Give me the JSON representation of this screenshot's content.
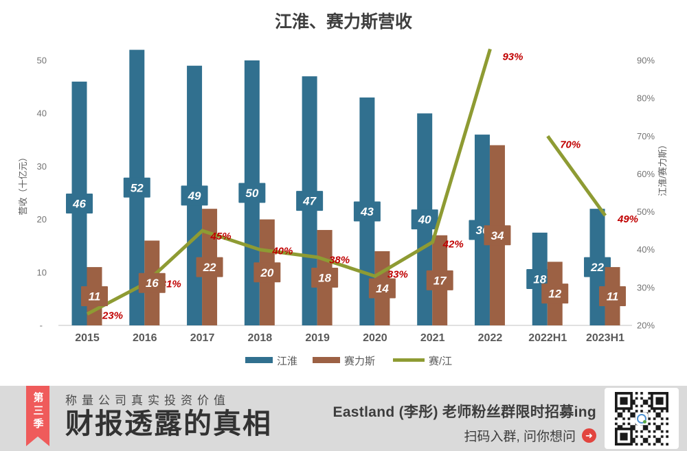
{
  "chart": {
    "title": "江淮、赛力斯营收",
    "left_axis": {
      "title": "营收（十亿元）",
      "ticks": [
        "50",
        "40",
        "30",
        "20",
        "10"
      ],
      "zero_label": "-",
      "max": 50,
      "min": 0
    },
    "right_axis": {
      "title": "江淮/赛力斯）",
      "ticks": [
        "90%",
        "80%",
        "70%",
        "60%",
        "50%",
        "40%",
        "30%",
        "20%"
      ],
      "max": 90,
      "min": 20
    },
    "legend": [
      {
        "label": "江淮",
        "type": "bar",
        "color": "#31708F"
      },
      {
        "label": "赛力斯",
        "type": "bar",
        "color": "#9C6144"
      },
      {
        "label": "赛/江",
        "type": "line",
        "color": "#8E9B33"
      }
    ]
  },
  "chart_data": {
    "type": "bar+line combo",
    "categories": [
      "2015",
      "2016",
      "2017",
      "2018",
      "2019",
      "2020",
      "2021",
      "2022",
      "2022H1",
      "2023H1"
    ],
    "series": [
      {
        "name": "江淮",
        "type": "bar",
        "axis": "left",
        "color": "#31708F",
        "values": [
          46,
          52,
          49,
          50,
          47,
          43,
          40,
          36,
          17.5,
          22
        ],
        "labels": [
          "46",
          "52",
          "49",
          "50",
          "47",
          "43",
          "40",
          "36",
          "18",
          "22"
        ]
      },
      {
        "name": "赛力斯",
        "type": "bar",
        "axis": "left",
        "color": "#9C6144",
        "values": [
          11,
          16,
          22,
          20,
          18,
          14,
          17,
          34,
          12,
          11
        ],
        "labels": [
          "11",
          "16",
          "22",
          "20",
          "18",
          "14",
          "17",
          "34",
          "12",
          "11"
        ]
      },
      {
        "name": "赛/江",
        "type": "line",
        "axis": "right",
        "color": "#8E9B33",
        "values": [
          23,
          31,
          45,
          40,
          38,
          33,
          42,
          93,
          70,
          49
        ],
        "labels": [
          "23%",
          "31%",
          "45%",
          "40%",
          "38%",
          "33%",
          "42%",
          "93%",
          "70%",
          "49%"
        ],
        "segments": [
          [
            0,
            7
          ],
          [
            8,
            9
          ]
        ],
        "label_color": "#C00000",
        "label_offsets": [
          [
            37,
            2
          ],
          [
            38,
            0
          ],
          [
            27,
            8
          ],
          [
            33,
            2
          ],
          [
            32,
            4
          ],
          [
            33,
            -3
          ],
          [
            30,
            3
          ],
          [
            33,
            11
          ],
          [
            33,
            12
          ],
          [
            33,
            5
          ]
        ]
      }
    ],
    "title": "江淮、赛力斯营收",
    "xlabel": "",
    "ylabel_left": "营收（十亿元）",
    "ylabel_right": "江淮/赛力斯）",
    "left_ylim": [
      0,
      50
    ],
    "right_ylim": [
      20,
      90
    ],
    "grid": false,
    "legend_position": "bottom"
  },
  "banner": {
    "ribbon": "第三季",
    "tagline": "称量公司真实投资价值",
    "series_title": "财报透露的真相",
    "promo_line1": "Eastland (李彤) 老师粉丝群限时招募ing",
    "promo_line2": "扫码入群, 问你想问",
    "arrow_glyph": "➜",
    "colors": {
      "ribbon": "#EF5B5B",
      "arrow_circle": "#E2453F"
    }
  }
}
